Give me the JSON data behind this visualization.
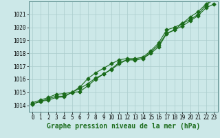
{
  "xlabel": "Graphe pression niveau de la mer (hPa)",
  "bg_color": "#cce8e8",
  "grid_color": "#aacccc",
  "line_color": "#1a6b1a",
  "x_ticks": [
    0,
    1,
    2,
    3,
    4,
    5,
    6,
    7,
    8,
    9,
    10,
    11,
    12,
    13,
    14,
    15,
    16,
    17,
    18,
    19,
    20,
    21,
    22,
    23
  ],
  "ylim": [
    1013.5,
    1022.0
  ],
  "xlim": [
    -0.5,
    23.5
  ],
  "yticks": [
    1014,
    1015,
    1016,
    1017,
    1018,
    1019,
    1020,
    1021
  ],
  "series1": [
    1014.1,
    1014.3,
    1014.4,
    1014.6,
    1014.65,
    1015.0,
    1015.3,
    1015.65,
    1016.1,
    1016.4,
    1016.75,
    1017.2,
    1017.5,
    1017.5,
    1017.6,
    1018.1,
    1018.65,
    1019.55,
    1019.8,
    1020.1,
    1020.5,
    1020.9,
    1021.5,
    1021.8
  ],
  "series2": [
    1014.1,
    1014.3,
    1014.5,
    1014.7,
    1014.7,
    1015.0,
    1015.4,
    1016.05,
    1016.5,
    1016.85,
    1017.2,
    1017.5,
    1017.6,
    1017.6,
    1017.7,
    1018.2,
    1018.8,
    1019.8,
    1020.0,
    1020.3,
    1020.8,
    1021.2,
    1021.8,
    1022.2
  ],
  "series3": [
    1014.2,
    1014.4,
    1014.6,
    1014.85,
    1014.9,
    1015.0,
    1015.05,
    1015.5,
    1016.0,
    1016.4,
    1016.8,
    1017.3,
    1017.5,
    1017.5,
    1017.6,
    1018.0,
    1018.5,
    1019.5,
    1019.8,
    1020.3,
    1020.6,
    1021.0,
    1021.7,
    1022.15
  ],
  "markersize": 2.5,
  "linewidth": 0.8,
  "xlabel_fontsize": 7,
  "tick_fontsize": 5.5
}
